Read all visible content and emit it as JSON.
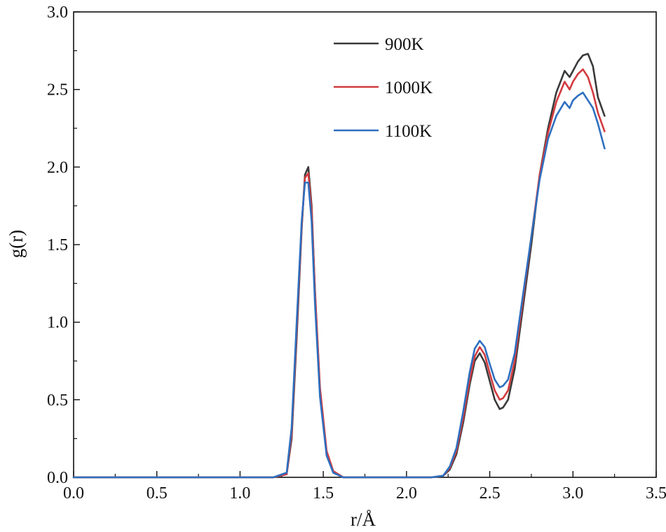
{
  "chart_data": {
    "type": "line",
    "title": "",
    "xlabel": "r/Å",
    "ylabel": "g(r)",
    "xlim": [
      0,
      3.5
    ],
    "ylim": [
      0,
      3.0
    ],
    "xticks": [
      0.0,
      0.5,
      1.0,
      1.5,
      2.0,
      2.5,
      3.0,
      3.5
    ],
    "yticks": [
      0.0,
      0.5,
      1.0,
      1.5,
      2.0,
      2.5,
      3.0
    ],
    "xtick_labels": [
      "0.0",
      "0.5",
      "1.0",
      "1.5",
      "2.0",
      "2.5",
      "3.0",
      "3.5"
    ],
    "ytick_labels": [
      "0.0",
      "0.5",
      "1.0",
      "1.5",
      "2.0",
      "2.5",
      "3.0"
    ],
    "grid": false,
    "legend": "top-right",
    "series": [
      {
        "name": "900K",
        "color": "#3a3a3a",
        "x": [
          0.0,
          0.5,
          1.0,
          1.2,
          1.28,
          1.31,
          1.34,
          1.37,
          1.39,
          1.41,
          1.43,
          1.45,
          1.48,
          1.52,
          1.56,
          1.62,
          1.8,
          2.0,
          2.15,
          2.22,
          2.26,
          2.3,
          2.34,
          2.38,
          2.41,
          2.44,
          2.47,
          2.5,
          2.53,
          2.56,
          2.58,
          2.61,
          2.65,
          2.7,
          2.75,
          2.8,
          2.85,
          2.9,
          2.95,
          2.98,
          3.0,
          3.03,
          3.06,
          3.09,
          3.12,
          3.15,
          3.19
        ],
        "y": [
          0.0,
          0.0,
          0.0,
          0.0,
          0.02,
          0.25,
          0.9,
          1.6,
          1.95,
          2.0,
          1.75,
          1.2,
          0.55,
          0.15,
          0.03,
          0.0,
          0.0,
          0.0,
          0.0,
          0.01,
          0.05,
          0.15,
          0.35,
          0.6,
          0.75,
          0.8,
          0.74,
          0.62,
          0.5,
          0.44,
          0.45,
          0.5,
          0.7,
          1.1,
          1.5,
          1.95,
          2.25,
          2.48,
          2.62,
          2.58,
          2.62,
          2.68,
          2.72,
          2.73,
          2.65,
          2.45,
          2.33
        ]
      },
      {
        "name": "1000K",
        "color": "#d23b3f",
        "x": [
          0.0,
          0.5,
          1.0,
          1.2,
          1.28,
          1.31,
          1.34,
          1.37,
          1.39,
          1.41,
          1.43,
          1.45,
          1.48,
          1.52,
          1.56,
          1.62,
          1.8,
          2.0,
          2.15,
          2.22,
          2.26,
          2.3,
          2.34,
          2.38,
          2.41,
          2.44,
          2.47,
          2.5,
          2.53,
          2.56,
          2.58,
          2.61,
          2.65,
          2.7,
          2.75,
          2.8,
          2.85,
          2.9,
          2.95,
          2.98,
          3.0,
          3.03,
          3.06,
          3.09,
          3.12,
          3.15,
          3.19
        ],
        "y": [
          0.0,
          0.0,
          0.0,
          0.0,
          0.02,
          0.28,
          0.95,
          1.62,
          1.93,
          1.96,
          1.72,
          1.2,
          0.58,
          0.17,
          0.04,
          0.0,
          0.0,
          0.0,
          0.0,
          0.01,
          0.06,
          0.17,
          0.38,
          0.63,
          0.78,
          0.84,
          0.79,
          0.67,
          0.56,
          0.5,
          0.51,
          0.56,
          0.75,
          1.15,
          1.55,
          1.95,
          2.22,
          2.42,
          2.55,
          2.5,
          2.55,
          2.6,
          2.63,
          2.58,
          2.48,
          2.35,
          2.23
        ]
      },
      {
        "name": "1100K",
        "color": "#2e6fbf",
        "x": [
          0.0,
          0.5,
          1.0,
          1.2,
          1.28,
          1.31,
          1.34,
          1.37,
          1.39,
          1.41,
          1.43,
          1.45,
          1.48,
          1.52,
          1.56,
          1.62,
          1.8,
          2.0,
          2.15,
          2.22,
          2.26,
          2.3,
          2.34,
          2.38,
          2.41,
          2.44,
          2.47,
          2.5,
          2.53,
          2.56,
          2.58,
          2.61,
          2.65,
          2.7,
          2.75,
          2.8,
          2.85,
          2.9,
          2.95,
          2.98,
          3.0,
          3.03,
          3.06,
          3.09,
          3.12,
          3.15,
          3.19
        ],
        "y": [
          0.0,
          0.0,
          0.0,
          0.0,
          0.03,
          0.32,
          1.0,
          1.65,
          1.9,
          1.9,
          1.65,
          1.12,
          0.52,
          0.14,
          0.03,
          0.0,
          0.0,
          0.0,
          0.0,
          0.01,
          0.07,
          0.19,
          0.42,
          0.68,
          0.83,
          0.88,
          0.84,
          0.73,
          0.63,
          0.58,
          0.59,
          0.63,
          0.8,
          1.18,
          1.55,
          1.92,
          2.18,
          2.33,
          2.42,
          2.38,
          2.43,
          2.46,
          2.48,
          2.43,
          2.38,
          2.28,
          2.12
        ]
      }
    ]
  }
}
